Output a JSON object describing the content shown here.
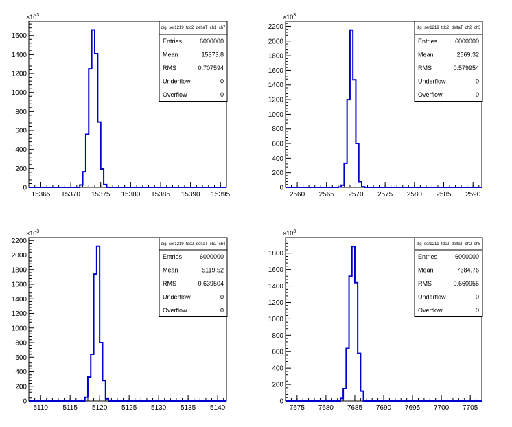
{
  "chart_data": [
    {
      "type": "histogram",
      "histogram_name": "dig_ser1219_tdc2_deltaT_ch1_ch7",
      "multiplier_label": "×10³",
      "multiplier_base": "×10",
      "multiplier_exp": "3",
      "xlim": [
        15363,
        15396
      ],
      "ylim": [
        0,
        1750
      ],
      "x_ticks": [
        15365,
        15370,
        15375,
        15380,
        15385,
        15390,
        15395
      ],
      "y_ticks": [
        0,
        200,
        400,
        600,
        800,
        1000,
        1200,
        1400,
        1600
      ],
      "bin_width": 0.5,
      "bins_x": [
        15371.5,
        15372.0,
        15372.5,
        15373.0,
        15373.5,
        15374.0,
        15374.5,
        15375.0,
        15375.5
      ],
      "bins_y": [
        25,
        165,
        560,
        1250,
        1660,
        1410,
        690,
        195,
        30
      ],
      "stats": [
        {
          "label": "Entries",
          "value": "6000000"
        },
        {
          "label": "Mean",
          "value": "15373.8"
        },
        {
          "label": "RMS",
          "value": "0.707594"
        },
        {
          "label": "Underflow",
          "value": "0"
        },
        {
          "label": "Overflow",
          "value": "0"
        }
      ]
    },
    {
      "type": "histogram",
      "histogram_name": "dig_ser1219_tdc2_deltaT_ch2_ch3",
      "multiplier_label": "×10³",
      "multiplier_base": "×10",
      "multiplier_exp": "3",
      "xlim": [
        2558,
        2591.5
      ],
      "ylim": [
        0,
        2270
      ],
      "x_ticks": [
        2560,
        2565,
        2570,
        2575,
        2580,
        2585,
        2590
      ],
      "y_ticks": [
        0,
        200,
        400,
        600,
        800,
        1000,
        1200,
        1400,
        1600,
        1800,
        2000,
        2200
      ],
      "bin_width": 0.5,
      "bins_x": [
        2567.0,
        2567.5,
        2568.0,
        2568.5,
        2569.0,
        2569.5,
        2570.0,
        2570.5,
        2571.0
      ],
      "bins_y": [
        5,
        30,
        330,
        1200,
        2150,
        1470,
        600,
        80,
        8
      ],
      "stats": [
        {
          "label": "Entries",
          "value": "6000000"
        },
        {
          "label": "Mean",
          "value": "2569.32"
        },
        {
          "label": "RMS",
          "value": "0.579954"
        },
        {
          "label": "Underflow",
          "value": "0"
        },
        {
          "label": "Overflow",
          "value": "0"
        }
      ]
    },
    {
      "type": "histogram",
      "histogram_name": "dig_ser1219_tdc2_deltaT_ch2_ch4",
      "multiplier_label": "×10³",
      "multiplier_base": "×10",
      "multiplier_exp": "3",
      "xlim": [
        5108,
        5141.5
      ],
      "ylim": [
        0,
        2240
      ],
      "x_ticks": [
        5110,
        5115,
        5120,
        5125,
        5130,
        5135,
        5140
      ],
      "y_ticks": [
        0,
        200,
        400,
        600,
        800,
        1000,
        1200,
        1400,
        1600,
        1800,
        2000,
        2200
      ],
      "bin_width": 0.5,
      "bins_x": [
        5117.5,
        5118.0,
        5118.5,
        5119.0,
        5119.5,
        5120.0,
        5120.5,
        5121.0
      ],
      "bins_y": [
        50,
        330,
        640,
        1740,
        2120,
        800,
        280,
        30
      ],
      "stats": [
        {
          "label": "Entries",
          "value": "6000000"
        },
        {
          "label": "Mean",
          "value": "5119.52"
        },
        {
          "label": "RMS",
          "value": "0.639504"
        },
        {
          "label": "Underflow",
          "value": "0"
        },
        {
          "label": "Overflow",
          "value": "0"
        }
      ]
    },
    {
      "type": "histogram",
      "histogram_name": "dig_ser1219_tdc2_deltaT_ch2_ch5",
      "multiplier_label": "×10³",
      "multiplier_base": "×10",
      "multiplier_exp": "3",
      "xlim": [
        7673,
        7707
      ],
      "ylim": [
        0,
        1990
      ],
      "x_ticks": [
        7675,
        7680,
        7685,
        7690,
        7695,
        7700,
        7705
      ],
      "y_ticks": [
        0,
        200,
        400,
        600,
        800,
        1000,
        1200,
        1400,
        1600,
        1800
      ],
      "bin_width": 0.5,
      "bins_x": [
        7682.5,
        7683.0,
        7683.5,
        7684.0,
        7684.5,
        7685.0,
        7685.5,
        7686.0
      ],
      "bins_y": [
        30,
        150,
        640,
        1520,
        1880,
        1440,
        580,
        120
      ],
      "stats": [
        {
          "label": "Entries",
          "value": "6000000"
        },
        {
          "label": "Mean",
          "value": "7684.76"
        },
        {
          "label": "RMS",
          "value": "0.660955"
        },
        {
          "label": "Underflow",
          "value": "0"
        },
        {
          "label": "Overflow",
          "value": "0"
        }
      ]
    }
  ],
  "colors": {
    "line": "#0000cc",
    "axis": "#000000",
    "background": "#ffffff"
  }
}
